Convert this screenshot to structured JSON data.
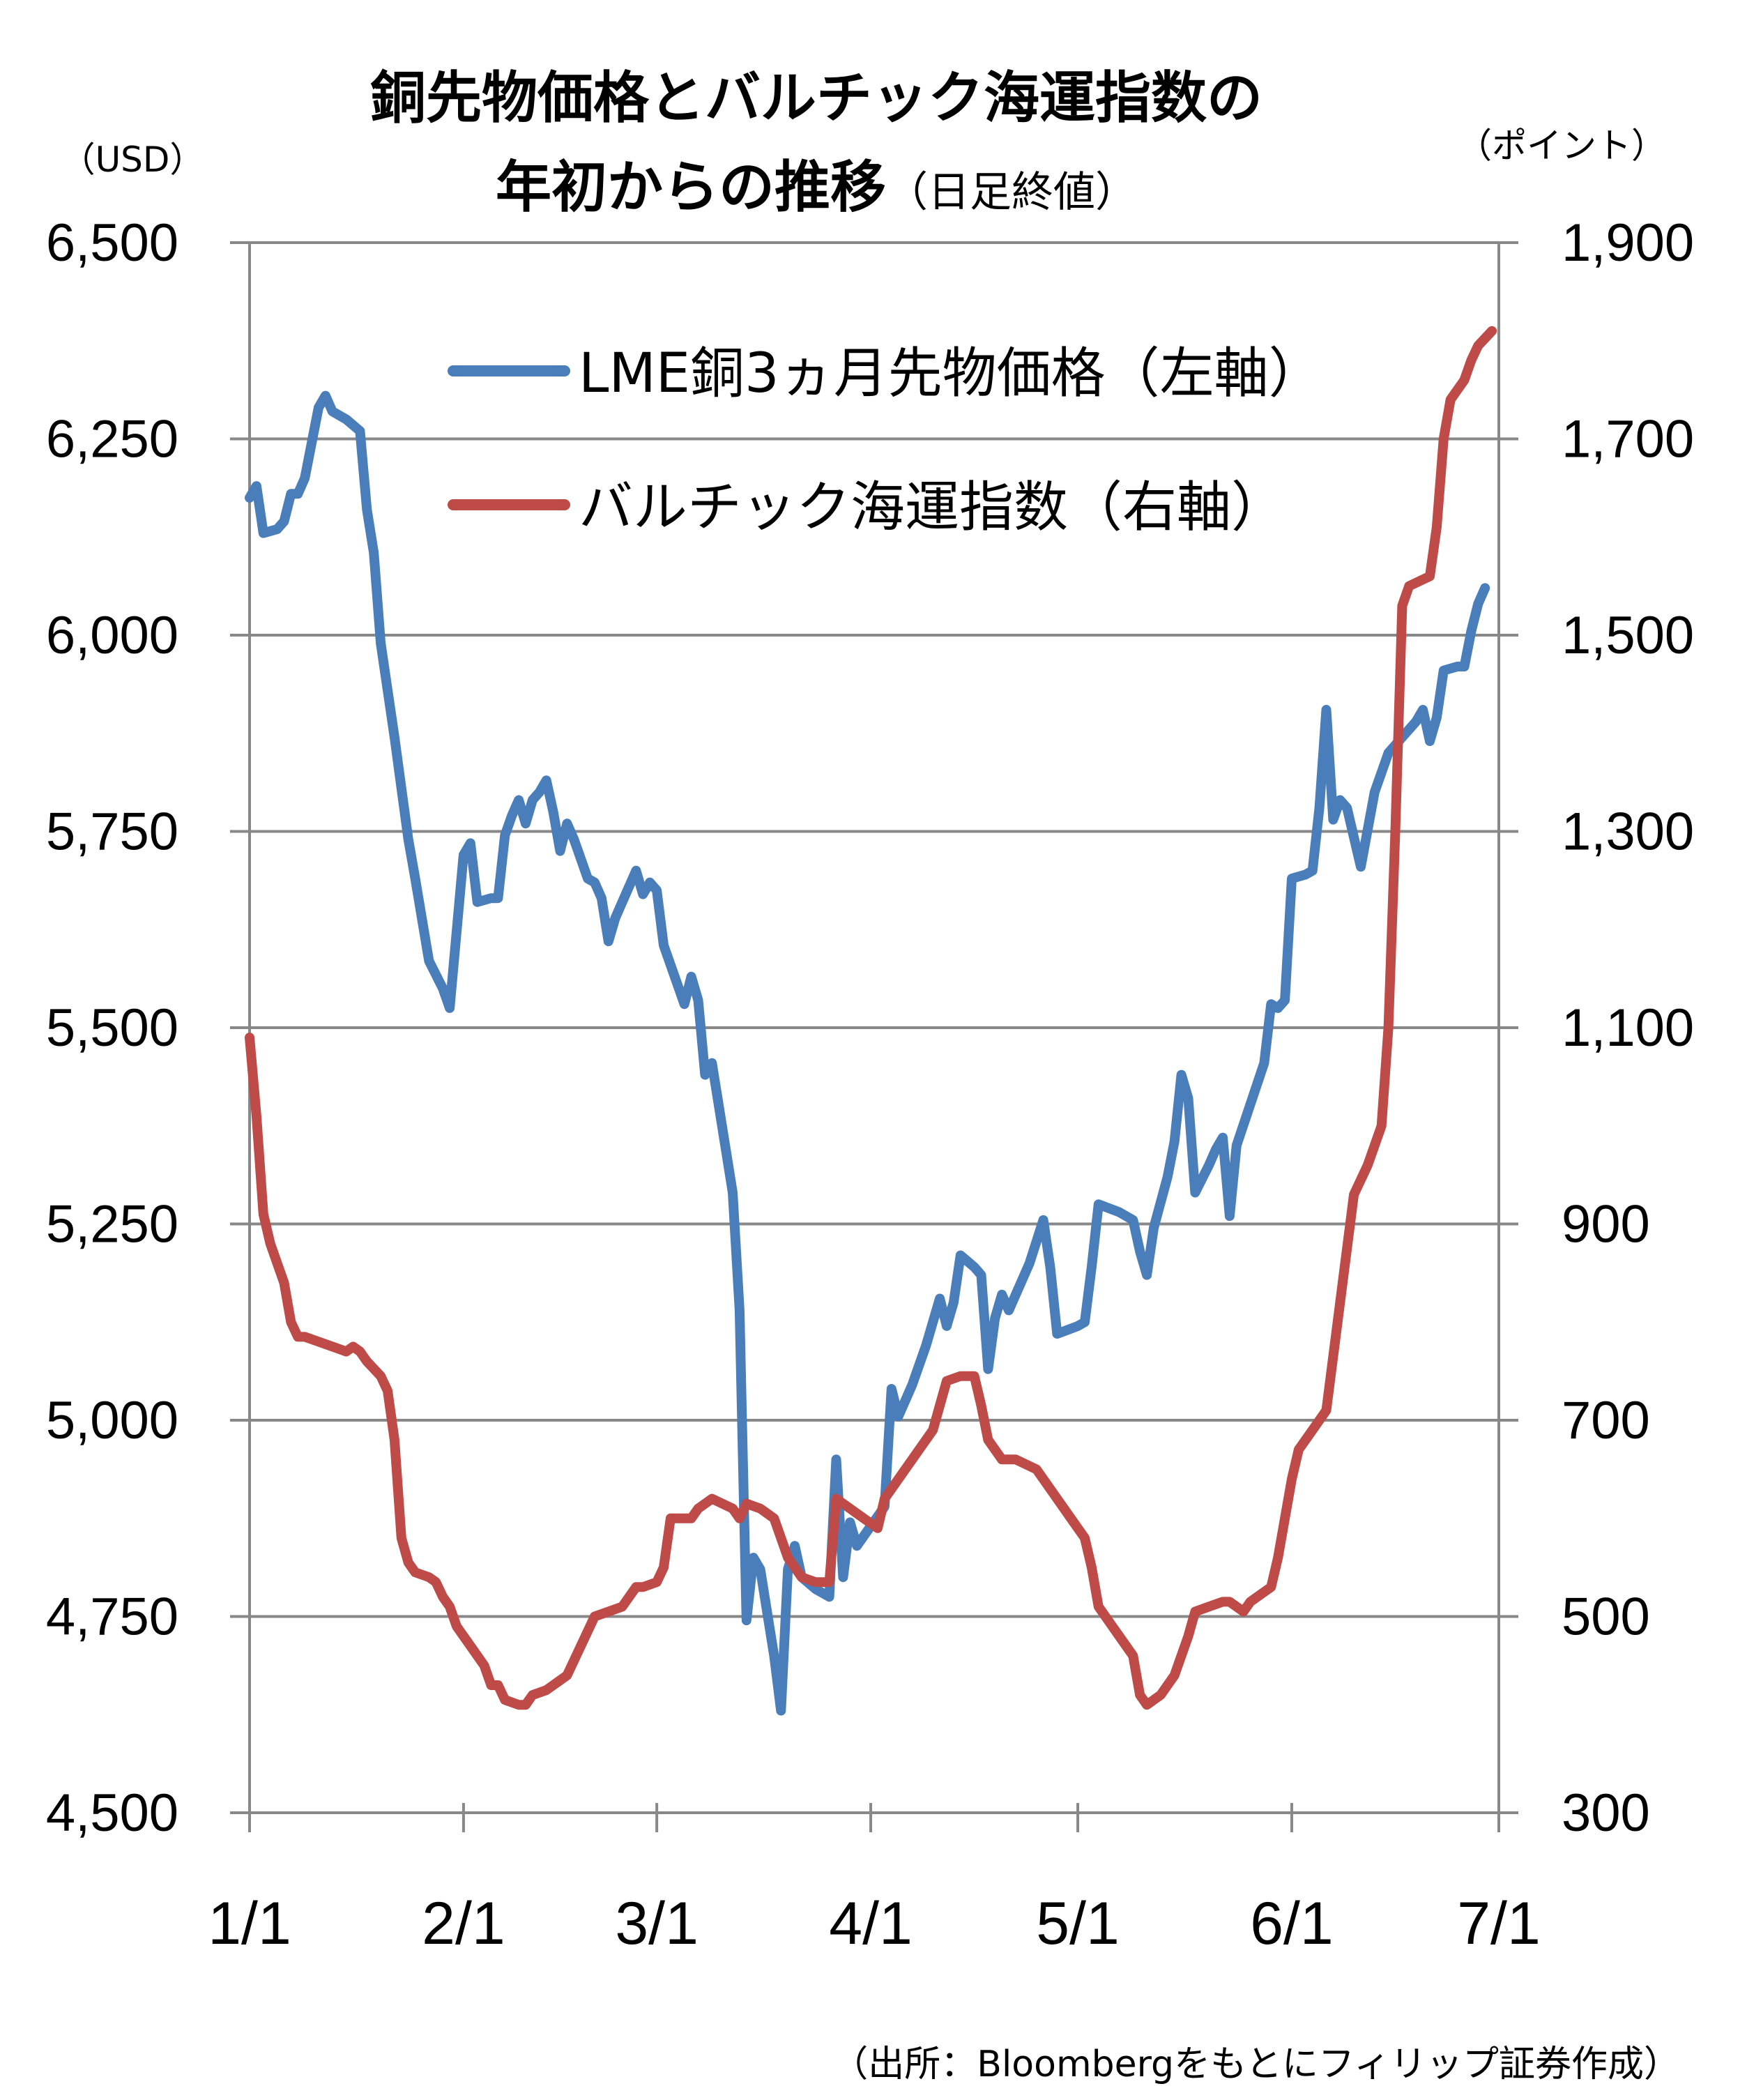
{
  "chart_data": {
    "type": "line",
    "title_line1": "銅先物価格とバルチック海運指数の",
    "title_line2_main": "年初からの推移",
    "title_line2_sub": "（日足終値）",
    "y_left_unit": "（USD）",
    "y_right_unit": "（ポイント）",
    "y_left": {
      "ylim": [
        4500,
        6500
      ],
      "ticks": [
        4500,
        4750,
        5000,
        5250,
        5500,
        5750,
        6000,
        6250,
        6500
      ],
      "tick_labels": [
        "4,500",
        "4,750",
        "5,000",
        "5,250",
        "5,500",
        "5,750",
        "6,000",
        "6,250",
        "6,500"
      ]
    },
    "y_right": {
      "ylim": [
        300,
        1900
      ],
      "ticks": [
        300,
        500,
        700,
        900,
        1100,
        1300,
        1500,
        1700,
        1900
      ],
      "tick_labels": [
        "300",
        "500",
        "700",
        "900",
        "1,100",
        "1,300",
        "1,500",
        "1,700",
        "1,900"
      ]
    },
    "x": {
      "categories": [
        "1/1",
        "2/1",
        "3/1",
        "4/1",
        "5/1",
        "6/1",
        "7/1"
      ],
      "category_day": [
        1,
        32,
        60,
        91,
        121,
        152,
        182
      ],
      "xlim": [
        1,
        182
      ]
    },
    "grid": true,
    "legend_position": "top-center",
    "source": "（出所：Bloombergをもとにフィリップ証券作成）",
    "series": [
      {
        "name": "LME銅3ヵ月先物価格（左軸）",
        "axis": "left",
        "color": "#4a7ebb",
        "points": [
          [
            1,
            6175
          ],
          [
            2,
            6190
          ],
          [
            3,
            6130
          ],
          [
            5,
            6135
          ],
          [
            6,
            6145
          ],
          [
            7,
            6180
          ],
          [
            8,
            6180
          ],
          [
            9,
            6200
          ],
          [
            10,
            6245
          ],
          [
            11,
            6290
          ],
          [
            12,
            6305
          ],
          [
            13,
            6285
          ],
          [
            15,
            6275
          ],
          [
            17,
            6260
          ],
          [
            18,
            6160
          ],
          [
            19,
            6105
          ],
          [
            20,
            5990
          ],
          [
            22,
            5870
          ],
          [
            24,
            5740
          ],
          [
            25,
            5690
          ],
          [
            27,
            5585
          ],
          [
            29,
            5550
          ],
          [
            30,
            5525
          ],
          [
            32,
            5720
          ],
          [
            33,
            5735
          ],
          [
            34,
            5660
          ],
          [
            36,
            5665
          ],
          [
            37,
            5665
          ],
          [
            38,
            5745
          ],
          [
            39,
            5770
          ],
          [
            40,
            5790
          ],
          [
            41,
            5760
          ],
          [
            42,
            5790
          ],
          [
            43,
            5800
          ],
          [
            44,
            5815
          ],
          [
            45,
            5775
          ],
          [
            46,
            5725
          ],
          [
            47,
            5760
          ],
          [
            48,
            5740
          ],
          [
            50,
            5690
          ],
          [
            51,
            5685
          ],
          [
            52,
            5665
          ],
          [
            53,
            5610
          ],
          [
            54,
            5640
          ],
          [
            56,
            5680
          ],
          [
            57,
            5700
          ],
          [
            58,
            5670
          ],
          [
            59,
            5685
          ],
          [
            60,
            5675
          ],
          [
            61,
            5605
          ],
          [
            63,
            5555
          ],
          [
            64,
            5530
          ],
          [
            65,
            5565
          ],
          [
            66,
            5535
          ],
          [
            67,
            5440
          ],
          [
            68,
            5455
          ],
          [
            70,
            5345
          ],
          [
            71,
            5290
          ],
          [
            72,
            5140
          ],
          [
            73,
            4745
          ],
          [
            74,
            4825
          ],
          [
            75,
            4810
          ],
          [
            77,
            4700
          ],
          [
            78,
            4630
          ],
          [
            79,
            4810
          ],
          [
            80,
            4840
          ],
          [
            81,
            4800
          ],
          [
            83,
            4785
          ],
          [
            85,
            4775
          ],
          [
            86,
            4950
          ],
          [
            87,
            4800
          ],
          [
            88,
            4870
          ],
          [
            89,
            4840
          ],
          [
            91,
            4865
          ],
          [
            93,
            4890
          ],
          [
            94,
            5040
          ],
          [
            95,
            5005
          ],
          [
            97,
            5045
          ],
          [
            99,
            5095
          ],
          [
            101,
            5155
          ],
          [
            102,
            5120
          ],
          [
            103,
            5150
          ],
          [
            104,
            5210
          ],
          [
            106,
            5195
          ],
          [
            107,
            5185
          ],
          [
            108,
            5065
          ],
          [
            109,
            5130
          ],
          [
            110,
            5160
          ],
          [
            111,
            5140
          ],
          [
            114,
            5200
          ],
          [
            116,
            5255
          ],
          [
            117,
            5195
          ],
          [
            118,
            5110
          ],
          [
            121,
            5120
          ],
          [
            122,
            5125
          ],
          [
            123,
            5195
          ],
          [
            124,
            5275
          ],
          [
            127,
            5265
          ],
          [
            129,
            5255
          ],
          [
            130,
            5215
          ],
          [
            131,
            5185
          ],
          [
            132,
            5245
          ],
          [
            134,
            5310
          ],
          [
            135,
            5355
          ],
          [
            136,
            5440
          ],
          [
            137,
            5410
          ],
          [
            138,
            5290
          ],
          [
            140,
            5325
          ],
          [
            141,
            5345
          ],
          [
            142,
            5360
          ],
          [
            143,
            5260
          ],
          [
            144,
            5350
          ],
          [
            148,
            5455
          ],
          [
            149,
            5530
          ],
          [
            150,
            5525
          ],
          [
            151,
            5535
          ],
          [
            152,
            5690
          ],
          [
            154,
            5695
          ],
          [
            155,
            5700
          ],
          [
            156,
            5780
          ],
          [
            157,
            5905
          ],
          [
            158,
            5765
          ],
          [
            159,
            5790
          ],
          [
            160,
            5780
          ],
          [
            162,
            5705
          ],
          [
            164,
            5800
          ],
          [
            166,
            5850
          ],
          [
            168,
            5870
          ],
          [
            170,
            5890
          ],
          [
            171,
            5905
          ],
          [
            172,
            5865
          ],
          [
            173,
            5895
          ],
          [
            174,
            5955
          ],
          [
            176,
            5960
          ],
          [
            177,
            5960
          ],
          [
            178,
            6005
          ],
          [
            179,
            6040
          ],
          [
            180,
            6060
          ]
        ]
      },
      {
        "name": "バルチック海運指数（右軸）",
        "axis": "right",
        "color": "#be4b48",
        "points": [
          [
            1,
            1090
          ],
          [
            2,
            1010
          ],
          [
            3,
            910
          ],
          [
            4,
            880
          ],
          [
            6,
            840
          ],
          [
            7,
            800
          ],
          [
            8,
            785
          ],
          [
            9,
            785
          ],
          [
            11,
            780
          ],
          [
            13,
            775
          ],
          [
            15,
            770
          ],
          [
            16,
            775
          ],
          [
            17,
            770
          ],
          [
            18,
            760
          ],
          [
            20,
            745
          ],
          [
            21,
            730
          ],
          [
            22,
            680
          ],
          [
            23,
            580
          ],
          [
            24,
            555
          ],
          [
            25,
            545
          ],
          [
            27,
            540
          ],
          [
            28,
            535
          ],
          [
            29,
            520
          ],
          [
            30,
            510
          ],
          [
            31,
            490
          ],
          [
            33,
            470
          ],
          [
            35,
            450
          ],
          [
            36,
            430
          ],
          [
            37,
            430
          ],
          [
            38,
            415
          ],
          [
            40,
            410
          ],
          [
            41,
            410
          ],
          [
            42,
            420
          ],
          [
            44,
            425
          ],
          [
            46,
            435
          ],
          [
            47,
            440
          ],
          [
            49,
            470
          ],
          [
            51,
            500
          ],
          [
            53,
            505
          ],
          [
            55,
            510
          ],
          [
            57,
            530
          ],
          [
            58,
            530
          ],
          [
            60,
            535
          ],
          [
            61,
            550
          ],
          [
            62,
            600
          ],
          [
            63,
            600
          ],
          [
            65,
            600
          ],
          [
            66,
            610
          ],
          [
            68,
            620
          ],
          [
            71,
            610
          ],
          [
            72,
            600
          ],
          [
            73,
            615
          ],
          [
            75,
            610
          ],
          [
            77,
            600
          ],
          [
            79,
            560
          ],
          [
            81,
            540
          ],
          [
            83,
            535
          ],
          [
            85,
            535
          ],
          [
            86,
            620
          ],
          [
            88,
            610
          ],
          [
            90,
            600
          ],
          [
            92,
            590
          ],
          [
            93,
            620
          ],
          [
            96,
            650
          ],
          [
            100,
            690
          ],
          [
            102,
            740
          ],
          [
            104,
            745
          ],
          [
            106,
            745
          ],
          [
            107,
            715
          ],
          [
            108,
            680
          ],
          [
            110,
            660
          ],
          [
            112,
            660
          ],
          [
            115,
            650
          ],
          [
            117,
            630
          ],
          [
            118,
            620
          ],
          [
            120,
            600
          ],
          [
            122,
            580
          ],
          [
            123,
            550
          ],
          [
            124,
            510
          ],
          [
            126,
            490
          ],
          [
            127,
            480
          ],
          [
            129,
            460
          ],
          [
            130,
            420
          ],
          [
            131,
            410
          ],
          [
            133,
            420
          ],
          [
            135,
            440
          ],
          [
            137,
            480
          ],
          [
            138,
            505
          ],
          [
            140,
            510
          ],
          [
            142,
            515
          ],
          [
            143,
            515
          ],
          [
            145,
            505
          ],
          [
            146,
            515
          ],
          [
            147,
            520
          ],
          [
            149,
            530
          ],
          [
            150,
            560
          ],
          [
            152,
            640
          ],
          [
            153,
            670
          ],
          [
            155,
            690
          ],
          [
            157,
            710
          ],
          [
            159,
            820
          ],
          [
            161,
            930
          ],
          [
            163,
            960
          ],
          [
            165,
            1000
          ],
          [
            166,
            1100
          ],
          [
            167,
            1300
          ],
          [
            168,
            1530
          ],
          [
            169,
            1550
          ],
          [
            172,
            1560
          ],
          [
            173,
            1610
          ],
          [
            174,
            1700
          ],
          [
            175,
            1740
          ],
          [
            177,
            1760
          ],
          [
            178,
            1780
          ],
          [
            179,
            1795
          ],
          [
            181,
            1810
          ]
        ]
      }
    ]
  }
}
